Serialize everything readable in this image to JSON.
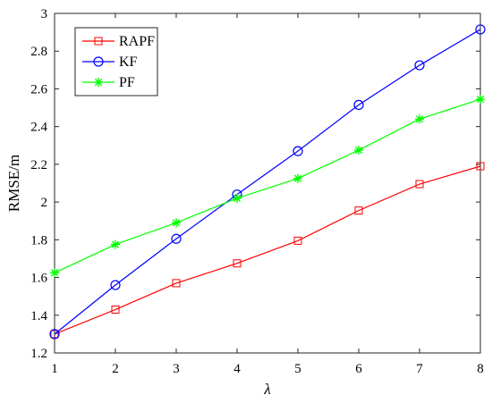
{
  "chart_data": {
    "type": "line",
    "title": "",
    "xlabel": "λ",
    "ylabel": "RMSE/m",
    "x": [
      1,
      2,
      3,
      4,
      5,
      6,
      7,
      8
    ],
    "xlim": [
      1,
      8
    ],
    "ylim": [
      1.2,
      3
    ],
    "xticks": [
      "1",
      "2",
      "3",
      "4",
      "5",
      "6",
      "7",
      "8"
    ],
    "yticks": [
      "1.2",
      "1.4",
      "1.6",
      "1.8",
      "2",
      "2.2",
      "2.4",
      "2.6",
      "2.8",
      "3"
    ],
    "grid": false,
    "legend_position": "top-left",
    "series": [
      {
        "name": "RAPF",
        "color": "#ff0000",
        "marker": "square",
        "values": [
          1.3,
          1.43,
          1.57,
          1.675,
          1.795,
          1.955,
          2.095,
          2.19
        ]
      },
      {
        "name": "KF",
        "color": "#0000ff",
        "marker": "circle",
        "values": [
          1.3,
          1.56,
          1.805,
          2.04,
          2.27,
          2.515,
          2.725,
          2.915
        ]
      },
      {
        "name": "PF",
        "color": "#00ff00",
        "marker": "asterisk",
        "values": [
          1.625,
          1.775,
          1.89,
          2.02,
          2.125,
          2.275,
          2.44,
          2.545
        ]
      }
    ]
  }
}
